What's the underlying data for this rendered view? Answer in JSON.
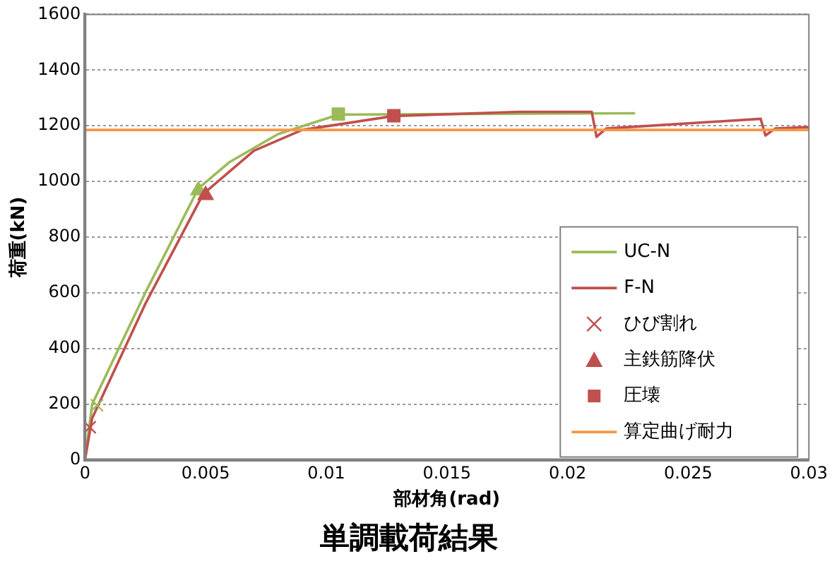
{
  "chart_data": {
    "type": "line",
    "title": "単調載荷結果",
    "xlabel": "部材角(rad)",
    "ylabel": "荷重(kN)",
    "xlim": [
      0,
      0.03
    ],
    "xticks": [
      0,
      0.005,
      0.01,
      0.015,
      0.02,
      0.025,
      0.03
    ],
    "ylim": [
      0,
      1600
    ],
    "yticks": [
      0,
      200,
      400,
      600,
      800,
      1000,
      1200,
      1400,
      1600
    ],
    "grid": "y",
    "legend": "bottom right",
    "marker": "none",
    "line_style": "solid",
    "series": [
      {
        "name": "UC-N",
        "color": "#9bbb59",
        "x": [
          0,
          0.0003,
          0.0025,
          0.0047,
          0.006,
          0.008,
          0.0105,
          0.015,
          0.0228
        ],
        "values": [
          0,
          200,
          600,
          975,
          1070,
          1170,
          1240,
          1242,
          1245
        ]
      },
      {
        "name": "F-N",
        "color": "#c0504d",
        "x": [
          0,
          0.0003,
          0.0025,
          0.0049,
          0.007,
          0.009,
          0.0128,
          0.018,
          0.021,
          0.0212,
          0.0216,
          0.028,
          0.0282,
          0.0286,
          0.03
        ],
        "values": [
          0,
          150,
          560,
          955,
          1110,
          1185,
          1235,
          1250,
          1250,
          1160,
          1190,
          1225,
          1165,
          1190,
          1195
        ]
      },
      {
        "name": "ひび割れ",
        "type": "scatter",
        "marker": "cross",
        "color": "#c0504d",
        "colors": [
          "#9bbb59",
          "#c0504d"
        ],
        "x": [
          0.0005,
          0.0002
        ],
        "values": [
          196,
          117
        ]
      },
      {
        "name": "主鉄筋降伏",
        "type": "scatter",
        "marker": "triangle",
        "color": "#c0504d",
        "colors": [
          "#9bbb59",
          "#c0504d"
        ],
        "x": [
          0.0047,
          0.005
        ],
        "values": [
          968,
          951
        ]
      },
      {
        "name": "圧壊",
        "type": "scatter",
        "marker": "square",
        "color": "#c0504d",
        "colors": [
          "#9bbb59",
          "#c0504d"
        ],
        "x": [
          0.0105,
          0.0128
        ],
        "values": [
          1242,
          1236
        ]
      },
      {
        "name": "算定曲げ耐力",
        "color": "#f79646",
        "x": [
          0,
          0.03
        ],
        "values": [
          1185,
          1185
        ]
      }
    ]
  }
}
